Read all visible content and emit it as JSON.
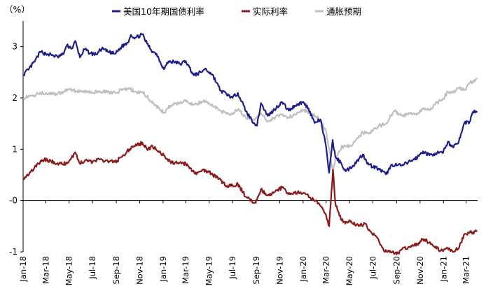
{
  "chart_data": {
    "type": "line",
    "unit_label": "（%）",
    "yaxis": {
      "min": -1,
      "max": 3.5,
      "ticks": [
        {
          "value": 3,
          "label": "3"
        },
        {
          "value": 2,
          "label": "2"
        },
        {
          "value": 1,
          "label": "1"
        },
        {
          "value": 0,
          "label": "-0"
        },
        {
          "value": -1,
          "label": "-1"
        }
      ]
    },
    "xaxis": {
      "min": "2018-01-01",
      "max": "2021-03-31",
      "ticks": [
        "Jan-18",
        "Mar-18",
        "May-18",
        "Jul-18",
        "Sep-18",
        "Nov-18",
        "Jan-19",
        "Mar-19",
        "May-19",
        "Jul-19",
        "Sep-19",
        "Nov-19",
        "Jan-20",
        "Mar-20",
        "May-20",
        "Jul-20",
        "Sep-20",
        "Nov-20",
        "Jan-21",
        "Mar-21"
      ],
      "tick_dates": [
        "2018-01-01",
        "2018-03-01",
        "2018-05-01",
        "2018-07-01",
        "2018-09-01",
        "2018-11-01",
        "2019-01-01",
        "2019-03-01",
        "2019-05-01",
        "2019-07-01",
        "2019-09-01",
        "2019-11-01",
        "2020-01-01",
        "2020-03-01",
        "2020-05-01",
        "2020-07-01",
        "2020-09-01",
        "2020-11-01",
        "2021-01-01",
        "2021-03-01"
      ]
    },
    "legend_position": "top",
    "series": [
      {
        "name": "美国10年期国债利率",
        "color": "#1f1f8c",
        "points": [
          [
            "2018-01-02",
            2.46
          ],
          [
            "2018-01-15",
            2.55
          ],
          [
            "2018-02-01",
            2.72
          ],
          [
            "2018-02-15",
            2.9
          ],
          [
            "2018-03-01",
            2.86
          ],
          [
            "2018-03-15",
            2.84
          ],
          [
            "2018-04-01",
            2.8
          ],
          [
            "2018-04-15",
            2.85
          ],
          [
            "2018-04-25",
            3.02
          ],
          [
            "2018-05-10",
            2.97
          ],
          [
            "2018-05-17",
            3.11
          ],
          [
            "2018-05-29",
            2.79
          ],
          [
            "2018-06-10",
            2.95
          ],
          [
            "2018-06-25",
            2.87
          ],
          [
            "2018-07-10",
            2.85
          ],
          [
            "2018-07-25",
            2.96
          ],
          [
            "2018-08-10",
            2.9
          ],
          [
            "2018-08-29",
            2.86
          ],
          [
            "2018-09-15",
            3.0
          ],
          [
            "2018-10-01",
            3.08
          ],
          [
            "2018-10-09",
            3.23
          ],
          [
            "2018-10-20",
            3.17
          ],
          [
            "2018-11-08",
            3.24
          ],
          [
            "2018-11-20",
            3.06
          ],
          [
            "2018-12-05",
            2.9
          ],
          [
            "2018-12-15",
            2.86
          ],
          [
            "2019-01-03",
            2.56
          ],
          [
            "2019-01-15",
            2.71
          ],
          [
            "2019-02-01",
            2.7
          ],
          [
            "2019-02-15",
            2.66
          ],
          [
            "2019-03-01",
            2.72
          ],
          [
            "2019-03-22",
            2.44
          ],
          [
            "2019-04-10",
            2.5
          ],
          [
            "2019-04-20",
            2.57
          ],
          [
            "2019-05-10",
            2.45
          ],
          [
            "2019-05-31",
            2.14
          ],
          [
            "2019-06-15",
            2.08
          ],
          [
            "2019-07-01",
            2.0
          ],
          [
            "2019-07-15",
            2.1
          ],
          [
            "2019-08-05",
            1.74
          ],
          [
            "2019-08-20",
            1.57
          ],
          [
            "2019-09-03",
            1.46
          ],
          [
            "2019-09-13",
            1.9
          ],
          [
            "2019-10-01",
            1.65
          ],
          [
            "2019-10-15",
            1.75
          ],
          [
            "2019-11-07",
            1.92
          ],
          [
            "2019-11-25",
            1.75
          ],
          [
            "2019-12-10",
            1.85
          ],
          [
            "2019-12-31",
            1.92
          ],
          [
            "2020-01-15",
            1.8
          ],
          [
            "2020-01-31",
            1.51
          ],
          [
            "2020-02-15",
            1.58
          ],
          [
            "2020-02-28",
            1.13
          ],
          [
            "2020-03-09",
            0.54
          ],
          [
            "2020-03-18",
            1.18
          ],
          [
            "2020-03-25",
            0.85
          ],
          [
            "2020-04-10",
            0.72
          ],
          [
            "2020-04-21",
            0.57
          ],
          [
            "2020-05-10",
            0.68
          ],
          [
            "2020-06-05",
            0.9
          ],
          [
            "2020-06-20",
            0.7
          ],
          [
            "2020-07-15",
            0.62
          ],
          [
            "2020-08-04",
            0.51
          ],
          [
            "2020-08-20",
            0.7
          ],
          [
            "2020-09-15",
            0.68
          ],
          [
            "2020-10-10",
            0.78
          ],
          [
            "2020-10-25",
            0.84
          ],
          [
            "2020-11-09",
            0.96
          ],
          [
            "2020-11-25",
            0.88
          ],
          [
            "2020-12-10",
            0.92
          ],
          [
            "2020-12-31",
            0.93
          ],
          [
            "2021-01-12",
            1.14
          ],
          [
            "2021-01-25",
            1.05
          ],
          [
            "2021-02-10",
            1.15
          ],
          [
            "2021-02-25",
            1.52
          ],
          [
            "2021-03-10",
            1.53
          ],
          [
            "2021-03-19",
            1.73
          ],
          [
            "2021-03-30",
            1.74
          ]
        ]
      },
      {
        "name": "实际利率",
        "color": "#8b1a1a",
        "points": [
          [
            "2018-01-02",
            0.44
          ],
          [
            "2018-01-20",
            0.55
          ],
          [
            "2018-02-10",
            0.72
          ],
          [
            "2018-02-25",
            0.8
          ],
          [
            "2018-03-15",
            0.76
          ],
          [
            "2018-04-01",
            0.73
          ],
          [
            "2018-04-15",
            0.7
          ],
          [
            "2018-05-01",
            0.77
          ],
          [
            "2018-05-17",
            0.94
          ],
          [
            "2018-05-29",
            0.72
          ],
          [
            "2018-06-15",
            0.8
          ],
          [
            "2018-07-01",
            0.75
          ],
          [
            "2018-07-20",
            0.8
          ],
          [
            "2018-08-10",
            0.77
          ],
          [
            "2018-08-29",
            0.75
          ],
          [
            "2018-09-15",
            0.85
          ],
          [
            "2018-10-05",
            1.0
          ],
          [
            "2018-10-20",
            1.06
          ],
          [
            "2018-11-08",
            1.13
          ],
          [
            "2018-11-20",
            1.0
          ],
          [
            "2018-12-05",
            1.05
          ],
          [
            "2018-12-20",
            0.96
          ],
          [
            "2019-01-03",
            0.88
          ],
          [
            "2019-01-20",
            0.75
          ],
          [
            "2019-02-10",
            0.72
          ],
          [
            "2019-03-01",
            0.72
          ],
          [
            "2019-03-25",
            0.52
          ],
          [
            "2019-04-15",
            0.6
          ],
          [
            "2019-05-01",
            0.55
          ],
          [
            "2019-05-31",
            0.4
          ],
          [
            "2019-06-15",
            0.27
          ],
          [
            "2019-07-01",
            0.3
          ],
          [
            "2019-07-15",
            0.32
          ],
          [
            "2019-08-05",
            0.07
          ],
          [
            "2019-08-28",
            -0.05
          ],
          [
            "2019-09-13",
            0.22
          ],
          [
            "2019-10-01",
            0.1
          ],
          [
            "2019-10-15",
            0.15
          ],
          [
            "2019-11-07",
            0.25
          ],
          [
            "2019-11-25",
            0.12
          ],
          [
            "2019-12-10",
            0.15
          ],
          [
            "2020-01-02",
            0.15
          ],
          [
            "2020-01-20",
            0.05
          ],
          [
            "2020-02-10",
            -0.05
          ],
          [
            "2020-02-28",
            -0.25
          ],
          [
            "2020-03-09",
            -0.5
          ],
          [
            "2020-03-19",
            0.6
          ],
          [
            "2020-03-25",
            -0.05
          ],
          [
            "2020-04-05",
            -0.3
          ],
          [
            "2020-04-20",
            -0.45
          ],
          [
            "2020-05-05",
            -0.4
          ],
          [
            "2020-05-25",
            -0.5
          ],
          [
            "2020-06-10",
            -0.45
          ],
          [
            "2020-06-25",
            -0.6
          ],
          [
            "2020-07-15",
            -0.75
          ],
          [
            "2020-07-31",
            -1.0
          ],
          [
            "2020-08-15",
            -0.98
          ],
          [
            "2020-09-01",
            -1.05
          ],
          [
            "2020-09-15",
            -0.95
          ],
          [
            "2020-10-10",
            -0.9
          ],
          [
            "2020-10-25",
            -0.85
          ],
          [
            "2020-11-09",
            -0.75
          ],
          [
            "2020-11-25",
            -0.82
          ],
          [
            "2020-12-10",
            -0.92
          ],
          [
            "2020-12-31",
            -0.99
          ],
          [
            "2021-01-12",
            -0.93
          ],
          [
            "2021-01-25",
            -1.0
          ],
          [
            "2021-02-10",
            -0.93
          ],
          [
            "2021-02-25",
            -0.65
          ],
          [
            "2021-03-10",
            -0.63
          ],
          [
            "2021-03-19",
            -0.62
          ],
          [
            "2021-03-30",
            -0.6
          ]
        ]
      },
      {
        "name": "通胀预期",
        "color": "#c0c0c0",
        "points": [
          [
            "2018-01-02",
            2.0
          ],
          [
            "2018-01-20",
            2.04
          ],
          [
            "2018-02-10",
            2.08
          ],
          [
            "2018-03-01",
            2.1
          ],
          [
            "2018-03-20",
            2.07
          ],
          [
            "2018-04-10",
            2.1
          ],
          [
            "2018-05-01",
            2.17
          ],
          [
            "2018-05-20",
            2.14
          ],
          [
            "2018-06-10",
            2.13
          ],
          [
            "2018-07-01",
            2.1
          ],
          [
            "2018-07-20",
            2.13
          ],
          [
            "2018-08-10",
            2.11
          ],
          [
            "2018-08-29",
            2.1
          ],
          [
            "2018-09-15",
            2.15
          ],
          [
            "2018-10-05",
            2.18
          ],
          [
            "2018-10-20",
            2.12
          ],
          [
            "2018-11-08",
            2.11
          ],
          [
            "2018-11-20",
            2.03
          ],
          [
            "2018-12-05",
            1.9
          ],
          [
            "2018-12-20",
            1.81
          ],
          [
            "2019-01-03",
            1.71
          ],
          [
            "2019-01-20",
            1.85
          ],
          [
            "2019-02-10",
            1.9
          ],
          [
            "2019-03-01",
            1.93
          ],
          [
            "2019-03-20",
            1.87
          ],
          [
            "2019-04-15",
            1.93
          ],
          [
            "2019-05-01",
            1.9
          ],
          [
            "2019-05-31",
            1.75
          ],
          [
            "2019-06-15",
            1.69
          ],
          [
            "2019-07-01",
            1.7
          ],
          [
            "2019-07-15",
            1.78
          ],
          [
            "2019-08-05",
            1.62
          ],
          [
            "2019-08-28",
            1.58
          ],
          [
            "2019-09-13",
            1.7
          ],
          [
            "2019-10-01",
            1.55
          ],
          [
            "2019-10-15",
            1.6
          ],
          [
            "2019-11-07",
            1.67
          ],
          [
            "2019-11-25",
            1.62
          ],
          [
            "2019-12-10",
            1.68
          ],
          [
            "2020-01-02",
            1.77
          ],
          [
            "2020-01-20",
            1.7
          ],
          [
            "2020-02-10",
            1.62
          ],
          [
            "2020-02-28",
            1.4
          ],
          [
            "2020-03-09",
            1.0
          ],
          [
            "2020-03-19",
            0.57
          ],
          [
            "2020-03-25",
            0.8
          ],
          [
            "2020-04-10",
            1.05
          ],
          [
            "2020-04-25",
            1.05
          ],
          [
            "2020-05-10",
            1.1
          ],
          [
            "2020-06-05",
            1.33
          ],
          [
            "2020-06-20",
            1.3
          ],
          [
            "2020-07-15",
            1.45
          ],
          [
            "2020-08-04",
            1.5
          ],
          [
            "2020-08-25",
            1.75
          ],
          [
            "2020-09-15",
            1.65
          ],
          [
            "2020-10-10",
            1.7
          ],
          [
            "2020-10-25",
            1.7
          ],
          [
            "2020-11-09",
            1.8
          ],
          [
            "2020-11-25",
            1.77
          ],
          [
            "2020-12-10",
            1.88
          ],
          [
            "2020-12-31",
            1.99
          ],
          [
            "2021-01-12",
            2.12
          ],
          [
            "2021-01-25",
            2.1
          ],
          [
            "2021-02-10",
            2.2
          ],
          [
            "2021-02-25",
            2.15
          ],
          [
            "2021-03-10",
            2.29
          ],
          [
            "2021-03-19",
            2.32
          ],
          [
            "2021-03-30",
            2.37
          ]
        ]
      }
    ]
  }
}
